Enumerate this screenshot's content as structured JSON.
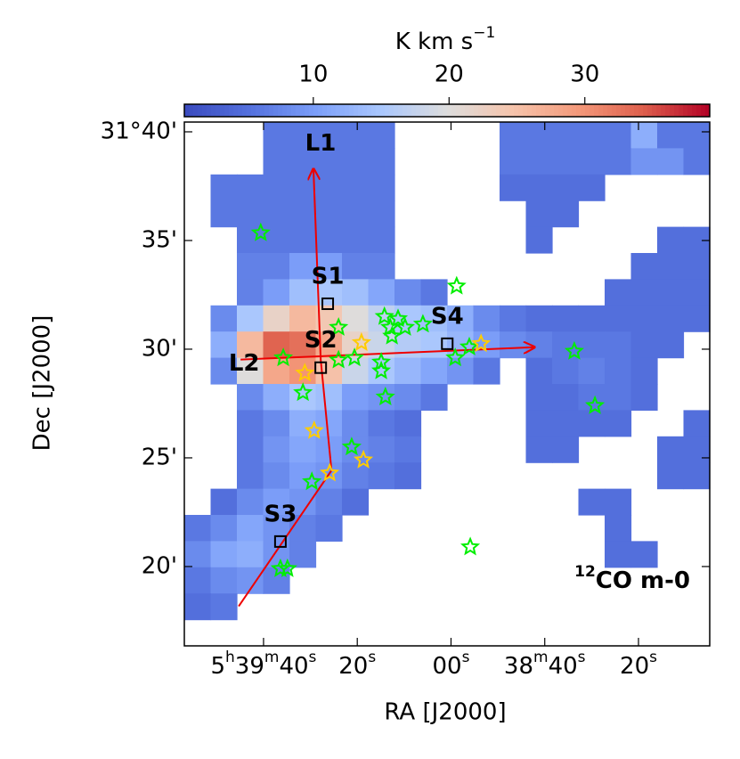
{
  "chart_data": {
    "type": "heatmap",
    "colormap": "coolwarm",
    "colorbar_label": "K km s−1",
    "clim": [
      0.5,
      39.2
    ],
    "colorbar_ticks": [
      10,
      20,
      30
    ],
    "xlabel": "RA [J2000]",
    "ylabel": "Dec [J2000]",
    "annotation": "12CO m-0",
    "xlim": [
      116.9,
      4.8
    ],
    "xticks": [
      {
        "value": 100,
        "label": "5h39m40s"
      },
      {
        "value": 80,
        "label": "20s"
      },
      {
        "value": 60,
        "label": "00s"
      },
      {
        "value": 40,
        "label": "38m40s"
      },
      {
        "value": 20,
        "label": "20s"
      }
    ],
    "ylim": [
      16.35,
      40.45
    ],
    "yticks": [
      {
        "value": 40,
        "label": "31°40'"
      },
      {
        "value": 35,
        "label": "35'"
      },
      {
        "value": 30,
        "label": "30'"
      },
      {
        "value": 25,
        "label": "25'"
      },
      {
        "value": 20,
        "label": "20'"
      }
    ],
    "z": [
      [
        null,
        null,
        null,
        6,
        6,
        6,
        6,
        6,
        null,
        null,
        null,
        null,
        6,
        6,
        6,
        6,
        6,
        12,
        6,
        6
      ],
      [
        null,
        null,
        null,
        6,
        6,
        6,
        6,
        6,
        null,
        null,
        null,
        null,
        6,
        6,
        6,
        6,
        6,
        9,
        9,
        6
      ],
      [
        null,
        6,
        6,
        6,
        6,
        6,
        6,
        6,
        null,
        null,
        null,
        null,
        5,
        5,
        5,
        5,
        null,
        null,
        null,
        null
      ],
      [
        null,
        6,
        6,
        6,
        6,
        6,
        6,
        6,
        null,
        null,
        null,
        null,
        null,
        5,
        5,
        null,
        null,
        null,
        null,
        null
      ],
      [
        null,
        null,
        6,
        6,
        6,
        6,
        6,
        6,
        null,
        null,
        null,
        null,
        null,
        5,
        null,
        null,
        null,
        null,
        5,
        5
      ],
      [
        null,
        null,
        7,
        7,
        10,
        10,
        7,
        7,
        null,
        null,
        null,
        null,
        null,
        null,
        null,
        null,
        null,
        5,
        5,
        5
      ],
      [
        null,
        null,
        7,
        10,
        14,
        15,
        14,
        11,
        8,
        6,
        null,
        null,
        null,
        null,
        null,
        null,
        5,
        5,
        5,
        5
      ],
      [
        null,
        8,
        15,
        22,
        26,
        24,
        20,
        17,
        15,
        14,
        12,
        8,
        6,
        5,
        5,
        5,
        5,
        5,
        5,
        5
      ],
      [
        null,
        12,
        26,
        34,
        33,
        28,
        22,
        18,
        16,
        15,
        13,
        10,
        8,
        7,
        6,
        6,
        6,
        5,
        5,
        null
      ],
      [
        null,
        8,
        20,
        28,
        30,
        25,
        18,
        15,
        13,
        11,
        9,
        6,
        null,
        5,
        6,
        7,
        6,
        5,
        null,
        null
      ],
      [
        null,
        null,
        8,
        12,
        15,
        14,
        10,
        9,
        8,
        6,
        null,
        null,
        null,
        5,
        5,
        6,
        6,
        5,
        null,
        null
      ],
      [
        null,
        null,
        6,
        8,
        12,
        11,
        8,
        6,
        5,
        null,
        null,
        null,
        null,
        5,
        5,
        5,
        5,
        null,
        null,
        5
      ],
      [
        null,
        null,
        6,
        9,
        11,
        10,
        8,
        7,
        6,
        null,
        null,
        null,
        null,
        5,
        5,
        null,
        null,
        null,
        5,
        5
      ],
      [
        null,
        null,
        6,
        8,
        10,
        9,
        7,
        6,
        5,
        null,
        null,
        null,
        null,
        null,
        null,
        null,
        null,
        null,
        5,
        5
      ],
      [
        null,
        5,
        8,
        10,
        9,
        7,
        5,
        null,
        null,
        null,
        null,
        null,
        null,
        null,
        null,
        5,
        5,
        null,
        null,
        null
      ],
      [
        6,
        8,
        11,
        9,
        7,
        6,
        null,
        null,
        null,
        null,
        null,
        null,
        null,
        null,
        null,
        null,
        5,
        null,
        null,
        null
      ],
      [
        8,
        11,
        12,
        9,
        7,
        null,
        null,
        null,
        null,
        null,
        null,
        null,
        null,
        null,
        null,
        null,
        5,
        5,
        null,
        null
      ],
      [
        6,
        8,
        9,
        7,
        null,
        null,
        null,
        null,
        null,
        null,
        null,
        null,
        null,
        null,
        null,
        null,
        null,
        null,
        null,
        null
      ],
      [
        5,
        6,
        null,
        null,
        null,
        null,
        null,
        null,
        null,
        null,
        null,
        null,
        null,
        null,
        null,
        null,
        null,
        null,
        null,
        null
      ],
      [
        null,
        null,
        null,
        null,
        null,
        null,
        null,
        null,
        null,
        null,
        null,
        null,
        null,
        null,
        null,
        null,
        null,
        null,
        null,
        null
      ]
    ],
    "points": [
      {
        "marker": "star",
        "color": "#00ee00",
        "x": [
          100.6,
          58.8,
          74.2,
          71.3,
          73.0,
          69.8,
          72.6,
          84.0,
          66.0,
          95.8,
          84.0,
          80.6,
          74.9,
          74.9,
          59.1,
          56.1,
          33.7,
          91.6,
          74.0,
          29.3,
          81.2,
          89.7,
          94.9,
          96.4,
          55.9
        ],
        "y": [
          35.35,
          32.9,
          31.5,
          31.4,
          31.0,
          31.0,
          30.6,
          31.0,
          31.15,
          29.6,
          29.5,
          29.6,
          29.4,
          29.0,
          29.6,
          30.1,
          29.9,
          28.0,
          27.8,
          27.4,
          25.5,
          23.9,
          19.9,
          19.9,
          20.9
        ]
      },
      {
        "marker": "star",
        "color": "#ffcc00",
        "x": [
          79.1,
          91.2,
          53.6,
          89.2,
          85.9,
          78.7
        ],
        "y": [
          30.3,
          28.9,
          30.25,
          26.25,
          24.3,
          24.9
        ]
      }
    ],
    "sources": {
      "marker": "square",
      "color": "#000000",
      "labels": [
        "S1",
        "S2",
        "S3",
        "S4"
      ],
      "x": [
        86.3,
        87.8,
        96.4,
        60.8
      ],
      "y": [
        32.09,
        29.15,
        21.15,
        30.25
      ]
    },
    "cuts": [
      {
        "name": "L1",
        "color": "#ee0000",
        "x": [
          105.3,
          85.5,
          87.8,
          89.35
        ],
        "y": [
          18.17,
          24.42,
          29.52,
          38.29
        ]
      },
      {
        "name": "L2",
        "color": "#ee0000",
        "x": [
          104.9,
          42.2
        ],
        "y": [
          29.52,
          30.09
        ]
      }
    ]
  }
}
